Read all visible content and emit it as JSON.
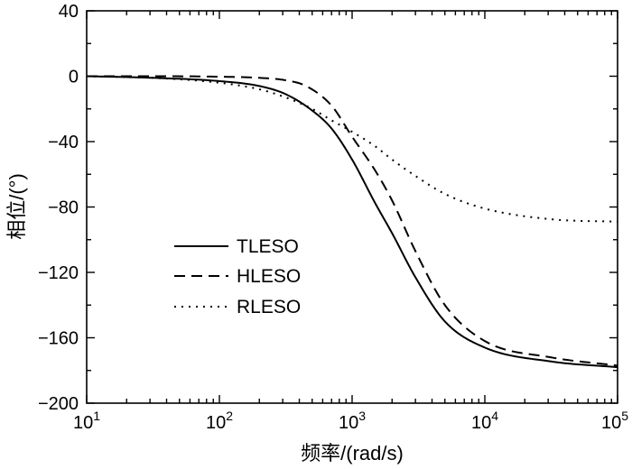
{
  "chart_data": {
    "type": "line",
    "title": "",
    "xlabel": "频率/(rad/s)",
    "ylabel": "相位/(°)",
    "xscale": "log",
    "xlim": [
      10,
      100000
    ],
    "ylim": [
      -200,
      40
    ],
    "xticks": [
      {
        "value": 10,
        "base": "10",
        "exp": "1"
      },
      {
        "value": 100,
        "base": "10",
        "exp": "2"
      },
      {
        "value": 1000,
        "base": "10",
        "exp": "3"
      },
      {
        "value": 10000,
        "base": "10",
        "exp": "4"
      },
      {
        "value": 100000,
        "base": "10",
        "exp": "5"
      }
    ],
    "yticks": [
      {
        "value": 40,
        "label": "40"
      },
      {
        "value": 0,
        "label": "0"
      },
      {
        "value": -40,
        "label": "−40"
      },
      {
        "value": -80,
        "label": "−80"
      },
      {
        "value": -120,
        "label": "−120"
      },
      {
        "value": -160,
        "label": "−160"
      },
      {
        "value": -200,
        "label": "−200"
      }
    ],
    "legend_position": "center-left",
    "series": [
      {
        "name": "TLESO",
        "style": "solid",
        "x": [
          10,
          31.6,
          100,
          200,
          316,
          500,
          700,
          1000,
          1500,
          2000,
          3000,
          5000,
          10000,
          31600,
          100000
        ],
        "y": [
          0,
          -1,
          -3,
          -6,
          -11,
          -21,
          -32,
          -51,
          -78,
          -96,
          -123,
          -150,
          -166,
          -174.5,
          -178
        ]
      },
      {
        "name": "HLESO",
        "style": "dashed",
        "x": [
          10,
          31.6,
          100,
          200,
          316,
          450,
          700,
          1000,
          1500,
          2000,
          3000,
          5000,
          10000,
          31600,
          100000
        ],
        "y": [
          0,
          0,
          -0.3,
          -1,
          -2.5,
          -6,
          -18,
          -37,
          -58,
          -76,
          -107,
          -140,
          -162,
          -172,
          -177
        ]
      },
      {
        "name": "RLESO",
        "style": "dotted",
        "x": [
          10,
          31.6,
          100,
          200,
          316,
          500,
          700,
          1000,
          1500,
          2000,
          3000,
          5000,
          10000,
          31600,
          100000
        ],
        "y": [
          0,
          -1,
          -4,
          -8,
          -13,
          -20,
          -27,
          -34,
          -43,
          -51,
          -61,
          -72,
          -81,
          -87.5,
          -89
        ]
      }
    ]
  }
}
